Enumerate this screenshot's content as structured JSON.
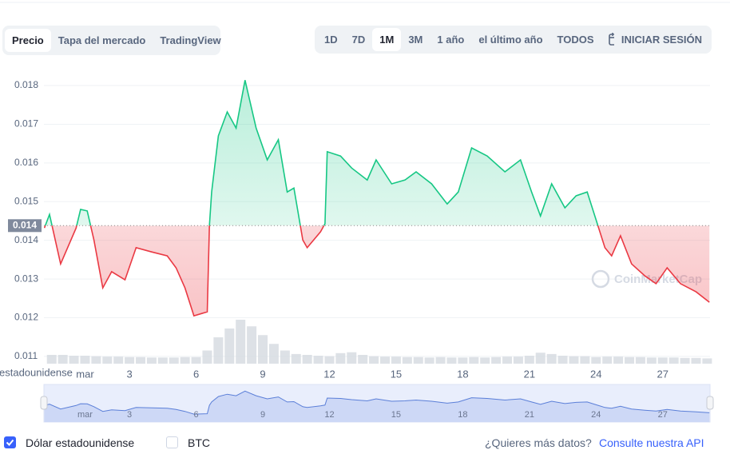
{
  "tabs": [
    "Precio",
    "Tapa del mercado",
    "TradingView"
  ],
  "active_tab": 0,
  "ranges": [
    "1D",
    "7D",
    "1M",
    "3M",
    "1 año",
    "el último año",
    "TODOS"
  ],
  "active_range": 2,
  "login": "INICIAR SESIÓN",
  "chart_data": {
    "type": "line",
    "y_axis_label": "estadounidense",
    "watermark": "CoinMarketCap",
    "xlim": [
      -0.85,
      29.13
    ],
    "xticks": [
      {
        "value": 1,
        "label": "mar"
      },
      3,
      6,
      9,
      12,
      15,
      18,
      21,
      24,
      27
    ],
    "ylim": [
      0.0108,
      0.0186
    ],
    "yticks": [
      0.011,
      0.012,
      0.013,
      0.014,
      0.015,
      0.016,
      0.017,
      0.018
    ],
    "grid": true,
    "baseline": {
      "value": 0.01438,
      "label": "0.014"
    },
    "colors": {
      "up": "#16c784",
      "down": "#ea3943"
    },
    "series": [
      {
        "name": "Dólar estadounidense",
        "x": [
          -0.83,
          -0.6,
          -0.1,
          0.6,
          0.8,
          1.1,
          1.4,
          1.8,
          2.2,
          2.8,
          3.3,
          4.0,
          4.7,
          5.1,
          5.5,
          5.9,
          6.5,
          6.6,
          6.7,
          7.0,
          7.4,
          7.8,
          8.2,
          8.7,
          9.2,
          9.7,
          10.1,
          10.4,
          10.8,
          11.0,
          11.6,
          11.8,
          11.9,
          12.5,
          13.0,
          13.7,
          14.1,
          14.8,
          15.4,
          15.9,
          16.6,
          17.3,
          17.8,
          18.4,
          19.1,
          19.9,
          20.6,
          21.1,
          21.5,
          22.0,
          22.6,
          23.1,
          23.6,
          24.0,
          24.4,
          24.7,
          25.1,
          25.6,
          26.2,
          26.7,
          27.2,
          27.8,
          28.5,
          29.1
        ],
        "values": [
          0.01432,
          0.01467,
          0.01339,
          0.01432,
          0.0148,
          0.01476,
          0.01401,
          0.01277,
          0.01319,
          0.01298,
          0.01381,
          0.0137,
          0.0136,
          0.01329,
          0.01277,
          0.01205,
          0.01215,
          0.01438,
          0.01525,
          0.0167,
          0.01732,
          0.0169,
          0.01814,
          0.0169,
          0.01608,
          0.0166,
          0.01525,
          0.01535,
          0.01401,
          0.01381,
          0.01422,
          0.01443,
          0.01629,
          0.01618,
          0.01587,
          0.01556,
          0.01608,
          0.01546,
          0.01556,
          0.01577,
          0.01546,
          0.01494,
          0.01525,
          0.01639,
          0.01618,
          0.01577,
          0.01608,
          0.01525,
          0.01463,
          0.01546,
          0.01484,
          0.01515,
          0.01525,
          0.01453,
          0.01381,
          0.0136,
          0.01412,
          0.01339,
          0.01308,
          0.01288,
          0.01329,
          0.01288,
          0.01267,
          0.0124
        ]
      }
    ],
    "volume": {
      "color": "#d5d9e0",
      "vlim": [
        0,
        100
      ],
      "x": [
        -0.5,
        0,
        0.5,
        1,
        1.5,
        2,
        2.5,
        3,
        3.5,
        4,
        4.5,
        5,
        5.5,
        6,
        6.5,
        7,
        7.5,
        8,
        8.5,
        9,
        9.5,
        10,
        10.5,
        11,
        11.5,
        12,
        12.5,
        13,
        13.5,
        14,
        14.5,
        15,
        15.5,
        16,
        16.5,
        17,
        17.5,
        18,
        18.5,
        19,
        19.5,
        20,
        20.5,
        21,
        21.5,
        22,
        22.5,
        23,
        23.5,
        24,
        24.5,
        25,
        25.5,
        26,
        26.5,
        27,
        27.5,
        28,
        28.5,
        29
      ],
      "values": [
        20,
        20,
        18,
        18,
        17,
        16,
        16,
        15,
        15,
        14,
        14,
        14,
        15,
        15,
        30,
        60,
        80,
        100,
        85,
        65,
        45,
        30,
        22,
        20,
        18,
        17,
        24,
        26,
        20,
        17,
        16,
        16,
        15,
        15,
        14,
        15,
        14,
        14,
        15,
        14,
        15,
        16,
        16,
        18,
        25,
        22,
        18,
        17,
        17,
        15,
        16,
        16,
        15,
        15,
        14,
        14,
        14,
        13,
        13,
        12
      ]
    },
    "navigator_color": "#5b7fd8"
  },
  "currencies": [
    {
      "name": "Dólar estadounidense",
      "checked": true
    },
    {
      "name": "BTC",
      "checked": false
    }
  ],
  "footer": {
    "question": "¿Quieres más datos?",
    "link": "Consulte nuestra API"
  }
}
